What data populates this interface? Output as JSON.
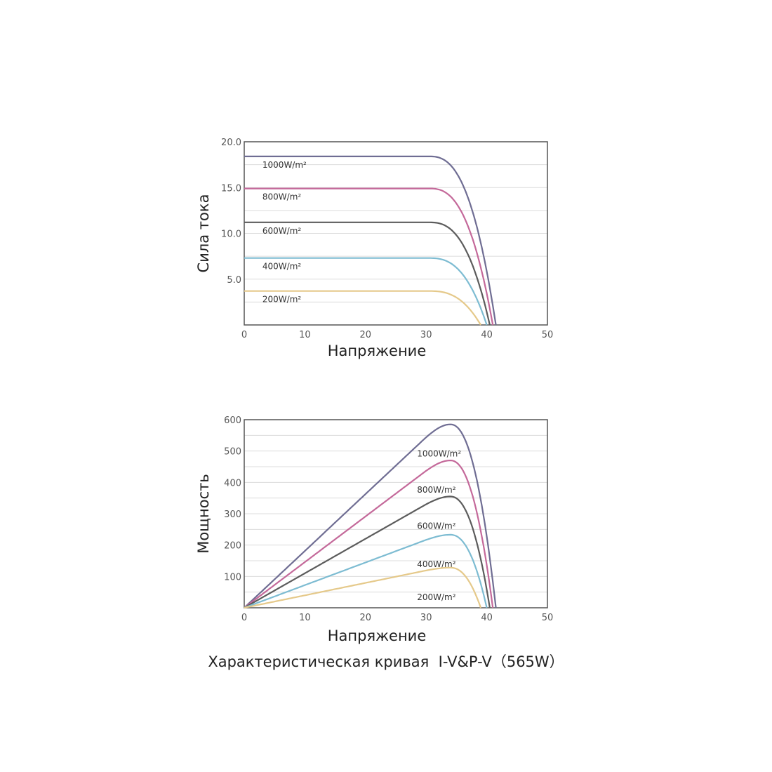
{
  "caption": "Характеристическая кривая  I-V&P-V（565W）",
  "colors": {
    "1000": "#6f6d93",
    "800": "#c4699a",
    "600": "#5c5c5c",
    "400": "#7dbcd2",
    "200": "#e5c98a",
    "grid": "#dcdcdc",
    "frame": "#555555"
  },
  "chart_data": [
    {
      "type": "line",
      "xlabel": "Напряжение",
      "ylabel": "Сила тока",
      "xlim": [
        0,
        50
      ],
      "ylim": [
        0,
        20
      ],
      "xticks": [
        "0",
        "10",
        "20",
        "30",
        "40",
        "50"
      ],
      "yticks": [
        "5.0",
        "10.0",
        "15.0",
        "20.0"
      ],
      "ytick_values": [
        5,
        10,
        15,
        20
      ],
      "grid": true,
      "series": [
        {
          "name": "1000W/m²",
          "color_key": "1000",
          "isc": 18.4,
          "knee_v": 30.5,
          "voc": 41.5
        },
        {
          "name": "800W/m²",
          "color_key": "800",
          "isc": 14.9,
          "knee_v": 30.5,
          "voc": 41.0
        },
        {
          "name": "600W/m²",
          "color_key": "600",
          "isc": 11.2,
          "knee_v": 30.5,
          "voc": 40.5
        },
        {
          "name": "400W/m²",
          "color_key": "400",
          "isc": 7.3,
          "knee_v": 30.5,
          "voc": 40.0
        },
        {
          "name": "200W/m²",
          "color_key": "200",
          "isc": 3.7,
          "knee_v": 30.5,
          "voc": 39.0
        }
      ]
    },
    {
      "type": "line",
      "xlabel": "Напряжение",
      "ylabel": "Мощность",
      "xlim": [
        0,
        50
      ],
      "ylim": [
        0,
        600
      ],
      "xticks": [
        "0",
        "10",
        "20",
        "30",
        "40",
        "50"
      ],
      "yticks": [
        "100",
        "200",
        "300",
        "400",
        "500",
        "600"
      ],
      "ytick_values": [
        100,
        200,
        300,
        400,
        500,
        600
      ],
      "grid": true,
      "series": [
        {
          "name": "1000W/m²",
          "color_key": "1000",
          "pmax": 585,
          "vmp": 34,
          "voc": 41.5
        },
        {
          "name": "800W/m²",
          "color_key": "800",
          "pmax": 470,
          "vmp": 34,
          "voc": 41.0
        },
        {
          "name": "600W/m²",
          "color_key": "600",
          "pmax": 355,
          "vmp": 34,
          "voc": 40.5
        },
        {
          "name": "400W/m²",
          "color_key": "400",
          "pmax": 233,
          "vmp": 34,
          "voc": 40.0
        },
        {
          "name": "200W/m²",
          "color_key": "200",
          "pmax": 128,
          "vmp": 34,
          "voc": 39.0
        }
      ]
    }
  ]
}
